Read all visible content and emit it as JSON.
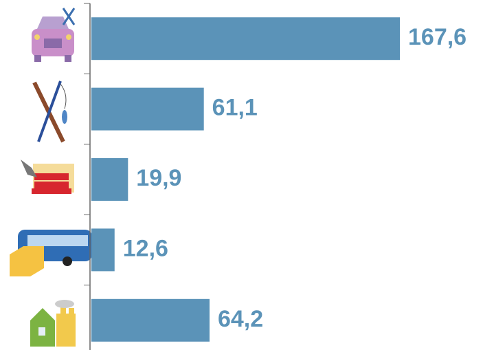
{
  "chart_data": {
    "type": "bar",
    "orientation": "horizontal",
    "categories": [
      null,
      null,
      null,
      null,
      null
    ],
    "values": [
      167.6,
      61.1,
      19.9,
      12.6,
      64.2
    ],
    "value_labels": [
      "167,6",
      "61,1",
      "19,9",
      "12,6",
      "64,2"
    ],
    "color": "#5b93b8"
  }
}
